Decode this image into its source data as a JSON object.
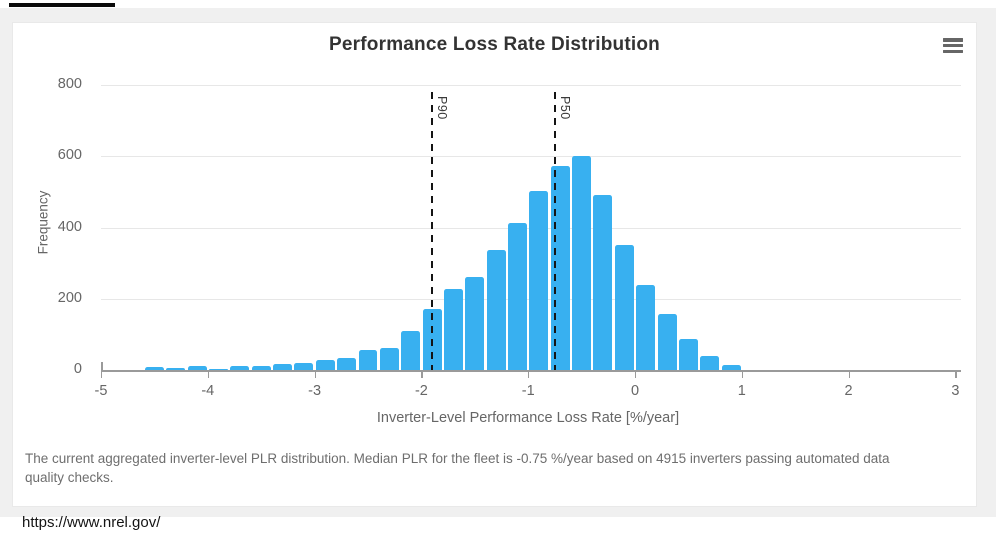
{
  "chart_data": {
    "type": "bar",
    "title": "Performance Loss Rate Distribution",
    "xlabel": "Inverter-Level Performance Loss Rate [%/year]",
    "ylabel": "Frequency",
    "bin_width": 0.2,
    "bin_centers": [
      -4.5,
      -4.3,
      -4.1,
      -3.9,
      -3.7,
      -3.5,
      -3.3,
      -3.1,
      -2.9,
      -2.7,
      -2.5,
      -2.3,
      -2.1,
      -1.9,
      -1.7,
      -1.5,
      -1.3,
      -1.1,
      -0.9,
      -0.7,
      -0.5,
      -0.3,
      -0.1,
      0.1,
      0.3,
      0.5,
      0.7,
      0.9
    ],
    "frequencies": [
      8,
      5,
      10,
      4,
      12,
      12,
      16,
      20,
      28,
      35,
      55,
      62,
      110,
      170,
      228,
      262,
      337,
      413,
      502,
      572,
      600,
      490,
      350,
      240,
      158,
      87,
      38,
      14
    ],
    "xlim": [
      -5,
      3
    ],
    "ylim": [
      0,
      800
    ],
    "x_ticks": [
      -5,
      -4,
      -3,
      -2,
      -1,
      0,
      1,
      2,
      3
    ],
    "y_ticks": [
      0,
      200,
      400,
      600,
      800
    ],
    "plot_lines": [
      {
        "label": "P90",
        "x": -1.9
      },
      {
        "label": "P50",
        "x": -0.75
      }
    ],
    "bar_color": "#38b0f0",
    "grid": true,
    "legend": "none"
  },
  "header": {
    "menu_icon": "hamburger-menu"
  },
  "caption": {
    "text": "The current aggregated inverter-level PLR distribution. Median PLR for the fleet is -0.75 %/year based on 4915 inverters passing automated data quality checks."
  },
  "footer": {
    "url": "https://www.nrel.gov/"
  },
  "colors": {
    "bar": "#38b0f0",
    "plotline": "#141414",
    "grid": "#e7e7e7",
    "axis": "#9a9a9a",
    "title_text": "#333333",
    "tick_text": "#666666",
    "caption_text": "#6e6e6e",
    "card_bg": "#ffffff",
    "page_bg": "#f0f0f0"
  }
}
